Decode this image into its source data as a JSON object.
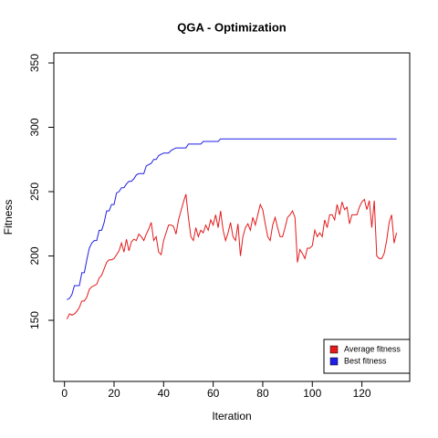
{
  "chart_data": {
    "type": "line",
    "title": "QGA - Optimization",
    "xlabel": "Iteration",
    "ylabel": "Fitness",
    "x": [
      1,
      2,
      3,
      4,
      5,
      6,
      7,
      8,
      9,
      10,
      11,
      12,
      13,
      14,
      15,
      16,
      17,
      18,
      19,
      20,
      21,
      22,
      23,
      24,
      25,
      26,
      27,
      28,
      29,
      30,
      31,
      32,
      33,
      34,
      35,
      36,
      37,
      38,
      39,
      40,
      41,
      42,
      43,
      44,
      45,
      46,
      47,
      48,
      49,
      50,
      51,
      52,
      53,
      54,
      55,
      56,
      57,
      58,
      59,
      60,
      61,
      62,
      63,
      64,
      65,
      66,
      67,
      68,
      69,
      70,
      71,
      72,
      73,
      74,
      75,
      76,
      77,
      78,
      79,
      80,
      81,
      82,
      83,
      84,
      85,
      86,
      87,
      88,
      89,
      90,
      91,
      92,
      93,
      94,
      95,
      96,
      97,
      98,
      99,
      100,
      101,
      102,
      103,
      104,
      105,
      106,
      107,
      108,
      109,
      110,
      111,
      112,
      113,
      114,
      115,
      116,
      117,
      118,
      119,
      120,
      121,
      122,
      123,
      124,
      125,
      126,
      127,
      128,
      129,
      130,
      131,
      132,
      133,
      134
    ],
    "series": [
      {
        "name": "Average fitness",
        "color": "#e41a1c",
        "values": [
          151,
          155,
          154,
          155,
          157,
          160,
          165,
          165,
          168,
          174,
          176,
          177,
          178,
          183,
          185,
          190,
          195,
          197,
          197,
          198,
          201,
          204,
          210,
          203,
          213,
          204,
          211,
          213,
          212,
          217,
          215,
          212,
          217,
          221,
          226,
          212,
          215,
          203,
          201,
          212,
          218,
          224,
          224,
          223,
          217,
          228,
          235,
          242,
          248,
          230,
          215,
          212,
          222,
          215,
          220,
          218,
          224,
          220,
          228,
          224,
          232,
          222,
          235,
          220,
          212,
          218,
          226,
          215,
          212,
          225,
          200,
          215,
          222,
          225,
          220,
          230,
          224,
          232,
          240,
          236,
          225,
          215,
          212,
          224,
          230,
          222,
          215,
          215,
          222,
          230,
          232,
          235,
          230,
          195,
          205,
          202,
          198,
          206,
          206,
          208,
          220,
          215,
          218,
          215,
          228,
          222,
          232,
          232,
          228,
          240,
          232,
          242,
          236,
          238,
          225,
          232,
          232,
          232,
          238,
          242,
          244,
          236,
          243,
          222,
          243,
          200,
          198,
          198,
          202,
          212,
          226,
          232,
          210,
          218
        ]
      },
      {
        "name": "Best fitness",
        "color": "#1f1fe6",
        "values": [
          166,
          167,
          170,
          177,
          177,
          177,
          187,
          187,
          197,
          206,
          210,
          212,
          212,
          220,
          220,
          226,
          235,
          235,
          240,
          240,
          249,
          250,
          253,
          253,
          256,
          258,
          258,
          260,
          263,
          264,
          264,
          264,
          270,
          271,
          272,
          275,
          275,
          278,
          279,
          280,
          280,
          280,
          282,
          283,
          284,
          284,
          284,
          284,
          284,
          287,
          287,
          287,
          287,
          287,
          287,
          289,
          289,
          289,
          289,
          289,
          289,
          289,
          291,
          291,
          291,
          291,
          291,
          291,
          291,
          291,
          291,
          291,
          291,
          291,
          291,
          291,
          291,
          291,
          291,
          291,
          291,
          291,
          291,
          291,
          291,
          291,
          291,
          291,
          291,
          291,
          291,
          291,
          291,
          291,
          291,
          291,
          291,
          291,
          291,
          291,
          291,
          291,
          291,
          291,
          291,
          291,
          291,
          291,
          291,
          291,
          291,
          291,
          291,
          291,
          291,
          291,
          291,
          291,
          291,
          291,
          291,
          291,
          291,
          291,
          291,
          291,
          291,
          291,
          291,
          291,
          291,
          291,
          291,
          291
        ]
      }
    ],
    "xlim": [
      -4.3,
      139.3
    ],
    "xticks": [
      0,
      20,
      40,
      60,
      80,
      100,
      120
    ],
    "ylim": [
      102.5,
      357.8
    ],
    "yticks": [
      150,
      200,
      250,
      300,
      350
    ],
    "legend": "bottom-right"
  }
}
